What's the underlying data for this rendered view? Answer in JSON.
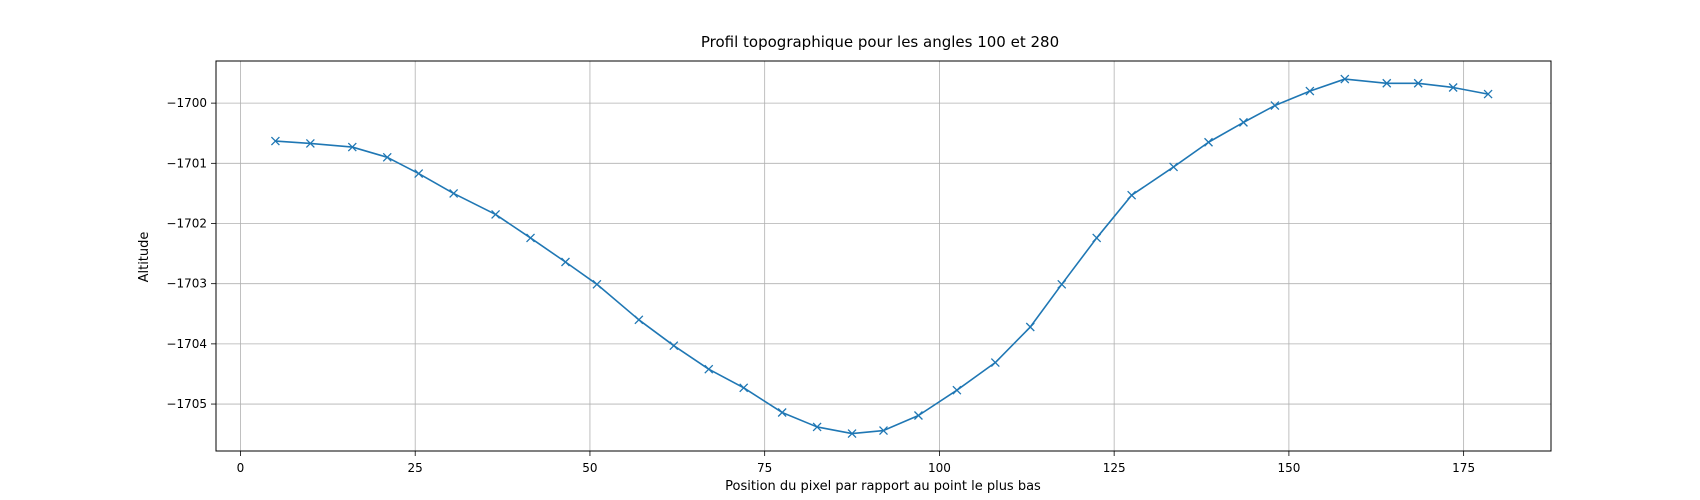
{
  "chart_data": {
    "type": "line",
    "title": "Profil topographique pour les angles 100 et 280",
    "xlabel": "Position du pixel par rapport au point le plus bas",
    "ylabel": "Altitude",
    "xlim": [
      -3.5,
      187.5
    ],
    "ylim": [
      -1705.78,
      -1699.3
    ],
    "xticks": [
      0,
      25,
      50,
      75,
      100,
      125,
      150,
      175
    ],
    "yticks": [
      -1705,
      -1704,
      -1703,
      -1702,
      -1701,
      -1700
    ],
    "ytick_labels": [
      "−1705",
      "−1704",
      "−1703",
      "−1702",
      "−1701",
      "−1700"
    ],
    "grid": true,
    "marker": "x",
    "color": "#1f77b4",
    "series": [
      {
        "x": [
          5,
          10,
          16,
          21,
          25.5,
          30.5,
          36.5,
          41.5,
          46.5,
          51,
          57,
          62,
          67,
          72,
          77.5,
          82.5,
          87.5,
          92,
          97,
          102.5,
          108,
          113,
          117.5,
          122.5,
          127.5,
          133.5,
          138.5,
          143.5,
          148,
          153,
          158,
          164,
          168.5,
          173.5,
          178.5
        ],
        "y": [
          -1700.63,
          -1700.67,
          -1700.73,
          -1700.9,
          -1701.17,
          -1701.5,
          -1701.85,
          -1702.24,
          -1702.64,
          -1703.01,
          -1703.6,
          -1704.03,
          -1704.42,
          -1704.73,
          -1705.14,
          -1705.38,
          -1705.49,
          -1705.44,
          -1705.19,
          -1704.77,
          -1704.31,
          -1703.72,
          -1703.01,
          -1702.24,
          -1701.53,
          -1701.06,
          -1700.65,
          -1700.32,
          -1700.04,
          -1699.8,
          -1699.6,
          -1699.67,
          -1699.67,
          -1699.74,
          -1699.85
        ]
      }
    ]
  }
}
